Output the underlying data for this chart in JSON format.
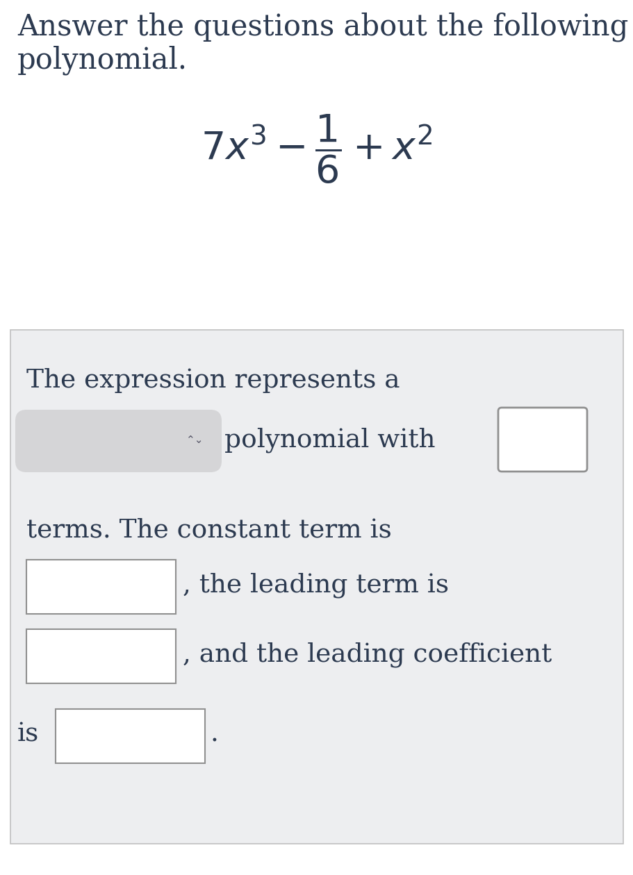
{
  "title_line1": "Answer the questions about the following",
  "title_line2": "polynomial.",
  "text_color": "#2c3a50",
  "bg_color": "#ffffff",
  "panel_bg_color": "#edeef0",
  "panel_border_color": "#c0c0c0",
  "title_fontsize": 30,
  "poly_fontsize": 38,
  "body_fontsize": 27,
  "line1_text": "The expression represents a",
  "poly_text_row1": "polynomial with",
  "terms_text": "terms. The constant term is",
  "leading_term_text": ", the leading term is",
  "leading_coeff_text": ", and the leading coefficient",
  "is_text": "is",
  "period": "."
}
